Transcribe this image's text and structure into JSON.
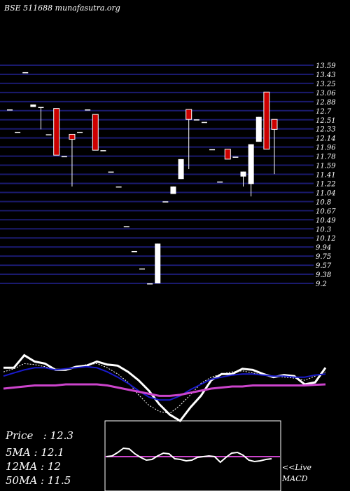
{
  "header": {
    "title": "BSE 511688 munafasutra.org"
  },
  "readout": {
    "price_label": "Price",
    "price_value": "12.3",
    "ma5_label": "5MA",
    "ma5_value": "12.1",
    "ma12_label": "12MA",
    "ma12_value": "12",
    "ma50_label": "50MA",
    "ma50_value": "11.5"
  },
  "macd_panel": {
    "label_line1": "<<Live",
    "label_line2": "MACD"
  },
  "colors": {
    "background": "#000000",
    "grid": "#1a1a6e",
    "up_candle": "#ffffff",
    "down_candle": "#cc0000",
    "ma_fast": "#ffffff",
    "ma_slow": "#1a1acc",
    "ma_long": "#cc44cc",
    "macd_zero": "#cc44cc"
  },
  "chart_data": [
    {
      "type": "candlestick",
      "title": "BSE 511688",
      "y_ticks": [
        "13.59",
        "13.43",
        "13.25",
        "13.06",
        "12.88",
        "12.7",
        "12.51",
        "12.33",
        "12.14",
        "11.96",
        "11.78",
        "11.59",
        "11.41",
        "11.22",
        "11.04",
        "10.8",
        "10.67",
        "10.49",
        "10.3",
        "10.12",
        "9.94",
        "9.75",
        "9.57",
        "9.38",
        "9.2"
      ],
      "ylim": [
        9.2,
        13.59
      ],
      "grid": true,
      "candles": [
        {
          "o": 12.7,
          "h": 12.7,
          "l": 12.7,
          "c": 12.7
        },
        {
          "o": 12.25,
          "h": 12.25,
          "l": 12.25,
          "c": 12.25
        },
        {
          "o": 13.45,
          "h": 13.45,
          "l": 13.45,
          "c": 13.45
        },
        {
          "o": 12.75,
          "h": 12.8,
          "l": 12.75,
          "c": 12.8
        },
        {
          "o": 12.75,
          "h": 12.75,
          "l": 12.3,
          "c": 12.75
        },
        {
          "o": 12.2,
          "h": 12.2,
          "l": 12.2,
          "c": 12.2
        },
        {
          "o": 12.72,
          "h": 12.72,
          "l": 11.78,
          "c": 11.78
        },
        {
          "o": 11.76,
          "h": 11.76,
          "l": 11.76,
          "c": 11.76
        },
        {
          "o": 12.2,
          "h": 12.2,
          "l": 11.15,
          "c": 12.1
        },
        {
          "o": 12.25,
          "h": 12.25,
          "l": 12.25,
          "c": 12.25
        },
        {
          "o": 12.7,
          "h": 12.7,
          "l": 12.7,
          "c": 12.7
        },
        {
          "o": 12.6,
          "h": 12.6,
          "l": 11.88,
          "c": 11.88
        },
        {
          "o": 11.88,
          "h": 11.88,
          "l": 11.88,
          "c": 11.88
        },
        {
          "o": 11.45,
          "h": 11.45,
          "l": 11.45,
          "c": 11.45
        },
        {
          "o": 11.15,
          "h": 11.15,
          "l": 11.15,
          "c": 11.15
        },
        {
          "o": 10.35,
          "h": 10.35,
          "l": 10.35,
          "c": 10.35
        },
        {
          "o": 9.85,
          "h": 9.85,
          "l": 9.85,
          "c": 9.85
        },
        {
          "o": 9.5,
          "h": 9.5,
          "l": 9.5,
          "c": 9.5
        },
        {
          "o": 9.2,
          "h": 9.2,
          "l": 9.2,
          "c": 9.2
        },
        {
          "o": 9.2,
          "h": 10.0,
          "l": 9.2,
          "c": 10.0
        },
        {
          "o": 10.85,
          "h": 10.85,
          "l": 10.85,
          "c": 10.85
        },
        {
          "o": 11.0,
          "h": 11.15,
          "l": 11.0,
          "c": 11.15
        },
        {
          "o": 11.3,
          "h": 11.7,
          "l": 11.3,
          "c": 11.7
        },
        {
          "o": 12.7,
          "h": 12.7,
          "l": 11.5,
          "c": 12.5
        },
        {
          "o": 12.5,
          "h": 12.5,
          "l": 12.5,
          "c": 12.5
        },
        {
          "o": 12.45,
          "h": 12.45,
          "l": 12.45,
          "c": 12.45
        },
        {
          "o": 11.9,
          "h": 11.9,
          "l": 11.9,
          "c": 11.9
        },
        {
          "o": 11.25,
          "h": 11.25,
          "l": 11.25,
          "c": 11.25
        },
        {
          "o": 11.9,
          "h": 11.9,
          "l": 11.7,
          "c": 11.7
        },
        {
          "o": 11.75,
          "h": 11.75,
          "l": 11.75,
          "c": 11.75
        },
        {
          "o": 11.35,
          "h": 11.45,
          "l": 11.15,
          "c": 11.45
        },
        {
          "o": 11.2,
          "h": 12.0,
          "l": 10.95,
          "c": 12.0
        },
        {
          "o": 12.05,
          "h": 12.55,
          "l": 12.05,
          "c": 12.55
        },
        {
          "o": 13.05,
          "h": 13.05,
          "l": 11.9,
          "c": 11.9
        },
        {
          "o": 12.5,
          "h": 12.5,
          "l": 11.4,
          "c": 12.3
        }
      ]
    },
    {
      "type": "line",
      "series": [
        {
          "values": [
            12.3,
            12.3,
            12.9,
            12.6,
            12.5,
            12.2,
            12.2,
            12.35,
            12.4,
            12.6,
            12.45,
            12.4,
            12.1,
            11.7,
            11.2,
            10.55,
            10.05,
            9.75,
            10.4,
            10.95,
            11.7,
            12.0,
            12.0,
            12.25,
            12.2,
            12.0,
            11.85,
            11.95,
            11.9,
            11.5,
            11.6,
            12.3
          ]
        },
        {
          "values": [
            12.1,
            12.25,
            12.5,
            12.45,
            12.35,
            12.2,
            12.25,
            12.35,
            12.45,
            12.5,
            12.3,
            12.0,
            11.6,
            11.0,
            10.5,
            10.2,
            10.1,
            10.5,
            11.0,
            11.55,
            11.85,
            12.0,
            12.1,
            12.15,
            12.05,
            11.95,
            11.9,
            11.85,
            11.8,
            11.7,
            11.9,
            12.1
          ]
        },
        {
          "values": [
            11.9,
            12.05,
            12.2,
            12.3,
            12.3,
            12.2,
            12.25,
            12.3,
            12.35,
            12.3,
            12.1,
            11.85,
            11.55,
            11.2,
            10.9,
            10.75,
            10.75,
            10.95,
            11.25,
            11.5,
            11.75,
            11.85,
            11.95,
            12.0,
            12.0,
            11.95,
            11.9,
            11.9,
            11.85,
            11.85,
            11.95,
            12.0
          ]
        },
        {
          "values": [
            11.3,
            11.35,
            11.4,
            11.45,
            11.45,
            11.45,
            11.5,
            11.5,
            11.5,
            11.5,
            11.45,
            11.35,
            11.25,
            11.15,
            11.05,
            10.95,
            10.95,
            11.0,
            11.1,
            11.2,
            11.3,
            11.35,
            11.4,
            11.4,
            11.45,
            11.45,
            11.45,
            11.45,
            11.45,
            11.45,
            11.48,
            11.5
          ]
        }
      ]
    },
    {
      "type": "line",
      "title": "MACD",
      "series": [
        {
          "values": [
            0,
            0.05,
            0.3,
            0.6,
            0.55,
            0.2,
            -0.05,
            -0.25,
            -0.2,
            0.05,
            0.25,
            0.2,
            -0.15,
            -0.2,
            -0.3,
            -0.25,
            -0.05,
            0.0,
            0.05,
            0.0,
            -0.4,
            -0.05,
            0.25,
            0.3,
            0.1,
            -0.25,
            -0.35,
            -0.3,
            -0.2,
            -0.15
          ]
        }
      ]
    }
  ]
}
